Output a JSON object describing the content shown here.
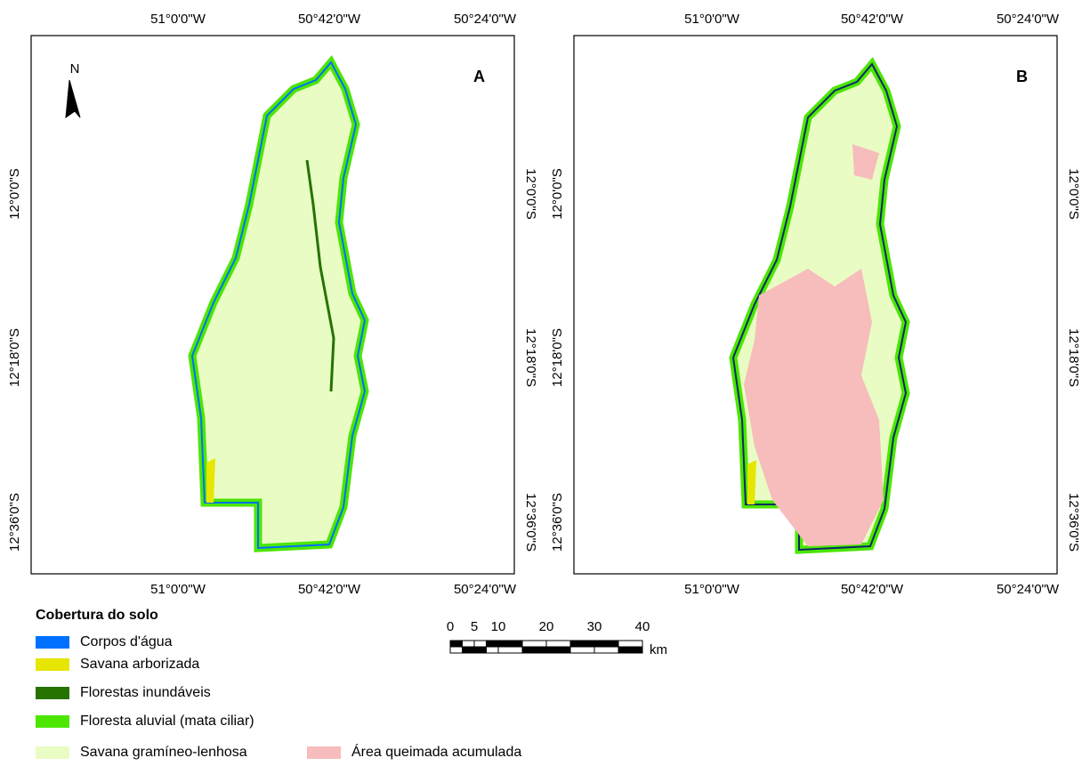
{
  "panels": [
    {
      "label": "A",
      "top_ticks": [
        "51°0'0\"W",
        "50°42'0\"W",
        "50°24'0\"W"
      ],
      "bottom_ticks": [
        "51°0'0\"W",
        "50°42'0\"W",
        "50°24'0\"W"
      ],
      "left_ticks": [
        "12°0'0\"S",
        "12°18'0\"S",
        "12°36'0\"S"
      ],
      "right_ticks": [
        "12°0'0\"S",
        "12°18'0\"S",
        "12°36'0\"S"
      ]
    },
    {
      "label": "B",
      "top_ticks": [
        "51°0'0\"W",
        "50°42'0\"W",
        "50°24'0\"W"
      ],
      "bottom_ticks": [
        "51°0'0\"W",
        "50°42'0\"W",
        "50°24'0\"W"
      ],
      "left_ticks": [
        "12°0'0\"S",
        "12°18'0\"S",
        "12°36'0\"S"
      ],
      "right_ticks": [
        "12°0'0\"S",
        "12°18'0\"S",
        "12°36'0\"S"
      ]
    }
  ],
  "north": "N",
  "legend": {
    "title": "Cobertura do solo",
    "items": [
      {
        "label": "Corpos d'água",
        "color": "#0070ff"
      },
      {
        "label": "Savana arborizada",
        "color": "#e6e600"
      },
      {
        "label": "Florestas inundáveis",
        "color": "#267300"
      },
      {
        "label": "Floresta aluvial (mata ciliar)",
        "color": "#4ce600"
      },
      {
        "label": "Savana gramíneo-lenhosa",
        "color": "#e9fcc4"
      },
      {
        "label": "Área queimada acumulada",
        "color": "#f7bcbc"
      }
    ]
  },
  "scale_bar": {
    "labels": [
      0,
      5,
      10,
      20,
      30,
      40
    ],
    "unit": "km"
  }
}
